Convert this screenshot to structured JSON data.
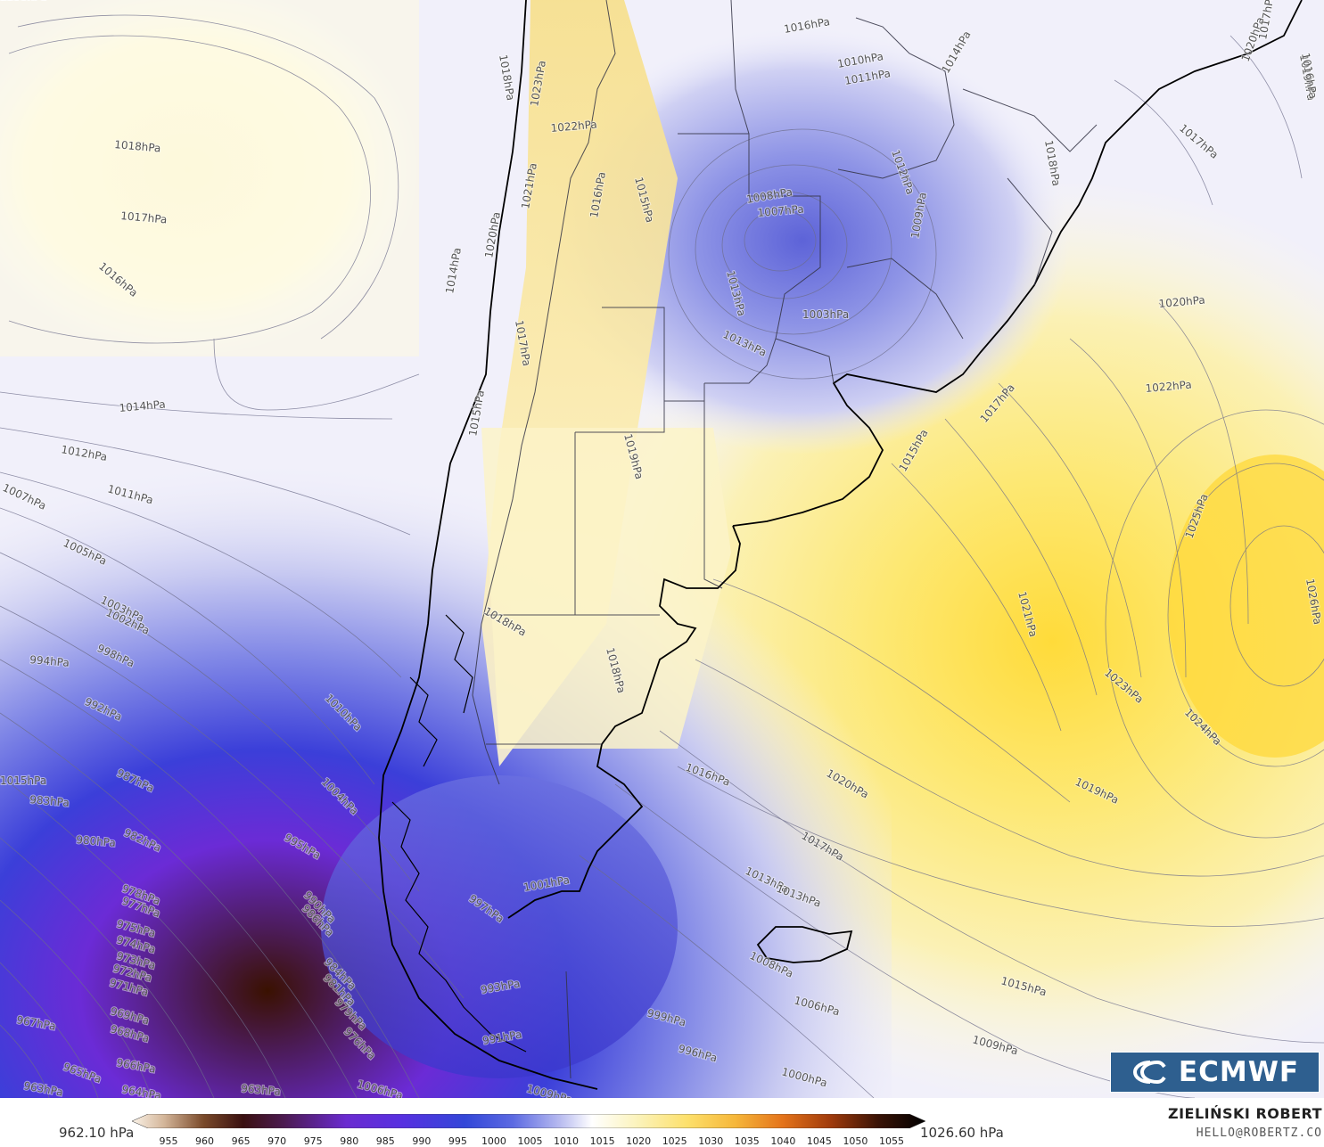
{
  "map": {
    "isobar_labels": [
      {
        "text": "1018hPa"
      },
      {
        "text": "1017hPa"
      },
      {
        "text": "1016hPa"
      },
      {
        "text": "1014hPa"
      },
      {
        "text": "1012hPa"
      },
      {
        "text": "1011hPa"
      },
      {
        "text": "1007hPa"
      },
      {
        "text": "1005hPa"
      },
      {
        "text": "1003hPa"
      },
      {
        "text": "1002hPa"
      },
      {
        "text": "998hPa"
      },
      {
        "text": "994hPa"
      },
      {
        "text": "992hPa"
      },
      {
        "text": "987hPa"
      },
      {
        "text": "983hPa"
      },
      {
        "text": "982hPa"
      },
      {
        "text": "980hPa"
      },
      {
        "text": "978hPa"
      },
      {
        "text": "977hPa"
      },
      {
        "text": "975hPa"
      },
      {
        "text": "974hPa"
      },
      {
        "text": "973hPa"
      },
      {
        "text": "972hPa"
      },
      {
        "text": "971hPa"
      },
      {
        "text": "969hPa"
      },
      {
        "text": "968hPa"
      },
      {
        "text": "967hPa"
      },
      {
        "text": "966hPa"
      },
      {
        "text": "965hPa"
      },
      {
        "text": "964hPa"
      },
      {
        "text": "963hPa"
      },
      {
        "text": "963hPa"
      },
      {
        "text": "1010hPa"
      },
      {
        "text": "1004hPa"
      },
      {
        "text": "995hPa"
      },
      {
        "text": "990hPa"
      },
      {
        "text": "986hPa"
      },
      {
        "text": "984hPa"
      },
      {
        "text": "981hPa"
      },
      {
        "text": "979hPa"
      },
      {
        "text": "976hPa"
      },
      {
        "text": "997hPa"
      },
      {
        "text": "1001hPa"
      },
      {
        "text": "993hPa"
      },
      {
        "text": "991hPa"
      },
      {
        "text": "999hPa"
      },
      {
        "text": "996hPa"
      },
      {
        "text": "1000hPa"
      },
      {
        "text": "1006hPa"
      },
      {
        "text": "1009hPa"
      },
      {
        "text": "1008hPa"
      },
      {
        "text": "1013hPa"
      },
      {
        "text": "1015hPa"
      },
      {
        "text": "1016hPa"
      },
      {
        "text": "1017hPa"
      },
      {
        "text": "1020hPa"
      },
      {
        "text": "1019hPa"
      },
      {
        "text": "1018hPa"
      },
      {
        "text": "1018hPa"
      },
      {
        "text": "1019hPa"
      },
      {
        "text": "1015hPa"
      },
      {
        "text": "1013hPa"
      },
      {
        "text": "1014hPa"
      },
      {
        "text": "1020hPa"
      },
      {
        "text": "1023hPa"
      },
      {
        "text": "1022hPa"
      },
      {
        "text": "1021hPa"
      },
      {
        "text": "1015hPa"
      },
      {
        "text": "1016hPa"
      },
      {
        "text": "1013hPa"
      },
      {
        "text": "1008hPa"
      },
      {
        "text": "1007hPa"
      },
      {
        "text": "1003hPa"
      },
      {
        "text": "1009hPa"
      },
      {
        "text": "1010hPa"
      },
      {
        "text": "1011hPa"
      },
      {
        "text": "1012hPa"
      },
      {
        "text": "1014hPa"
      },
      {
        "text": "1017hPa"
      },
      {
        "text": "1018hPa"
      },
      {
        "text": "1016hPa"
      },
      {
        "text": "1015hPa"
      },
      {
        "text": "1017hPa"
      },
      {
        "text": "1020hPa"
      },
      {
        "text": "1022hPa"
      },
      {
        "text": "1018hPa"
      },
      {
        "text": "1017hPa"
      },
      {
        "text": "1025hPa"
      },
      {
        "text": "1026hPa"
      },
      {
        "text": "1021hPa"
      },
      {
        "text": "1023hPa"
      },
      {
        "text": "1024hPa"
      },
      {
        "text": "1019hPa"
      },
      {
        "text": "1020hPa"
      },
      {
        "text": "1017hPa"
      },
      {
        "text": "1013hPa"
      },
      {
        "text": "1016hPa"
      },
      {
        "text": "1015hPa"
      },
      {
        "text": "1006hPa"
      },
      {
        "text": "1009hPa"
      },
      {
        "text": "1008hPa"
      },
      {
        "text": "1000hPa"
      },
      {
        "text": "5hPa"
      },
      {
        "text": "970"
      },
      {
        "text": "98"
      }
    ]
  },
  "colorbar": {
    "min_label": "962.10 hPa",
    "max_label": "1026.60 hPa",
    "ticks": [
      "955",
      "960",
      "965",
      "970",
      "975",
      "980",
      "985",
      "990",
      "995",
      "1000",
      "1005",
      "1010",
      "1015",
      "1020",
      "1025",
      "1030",
      "1035",
      "1040",
      "1045",
      "1050",
      "1055"
    ]
  },
  "branding": {
    "author": "ZIELIŃSKI ROBERT",
    "email": "HELLO@ROBERTZ.CO",
    "logo_text": "ECMWF"
  }
}
